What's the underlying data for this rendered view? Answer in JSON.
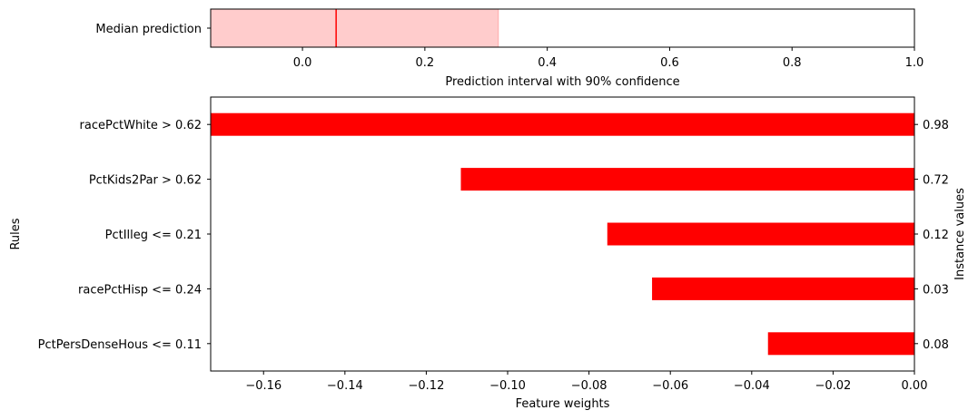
{
  "chart_data": [
    {
      "type": "bar",
      "orientation": "horizontal",
      "ylabel_category": "Median prediction",
      "xlabel": "Prediction interval with 90% confidence",
      "interval": {
        "low": -0.15,
        "high": 0.32
      },
      "median": 0.055,
      "xlim": [
        -0.15,
        1.0
      ],
      "xticks": [
        0.0,
        0.2,
        0.4,
        0.6,
        0.8,
        1.0
      ],
      "xtick_labels": [
        "0.0",
        "0.2",
        "0.4",
        "0.6",
        "0.8",
        "1.0"
      ],
      "colors": {
        "interval_fill": "#ffcccc",
        "interval_edge": "#ffaaaa",
        "median_line": "#ff0000"
      }
    },
    {
      "type": "bar",
      "orientation": "horizontal",
      "categories": [
        "racePctWhite > 0.62",
        "PctKids2Par > 0.62",
        "PctIlleg <= 0.21",
        "racePctHisp <= 0.24",
        "PctPersDenseHous <= 0.11"
      ],
      "values": [
        -0.173,
        -0.1115,
        -0.0755,
        -0.0645,
        -0.036
      ],
      "instance_values": [
        "0.98",
        "0.72",
        "0.12",
        "0.03",
        "0.08"
      ],
      "xlabel": "Feature weights",
      "ylabel": "Rules",
      "ylabel_right": "Instance values",
      "xlim": [
        -0.173,
        0.0
      ],
      "xticks": [
        -0.16,
        -0.14,
        -0.12,
        -0.1,
        -0.08,
        -0.06,
        -0.04,
        -0.02,
        0.0
      ],
      "xtick_labels": [
        "−0.16",
        "−0.14",
        "−0.12",
        "−0.10",
        "−0.08",
        "−0.06",
        "−0.04",
        "−0.02",
        "0.00"
      ],
      "colors": {
        "bar": "#ff0000"
      }
    }
  ]
}
